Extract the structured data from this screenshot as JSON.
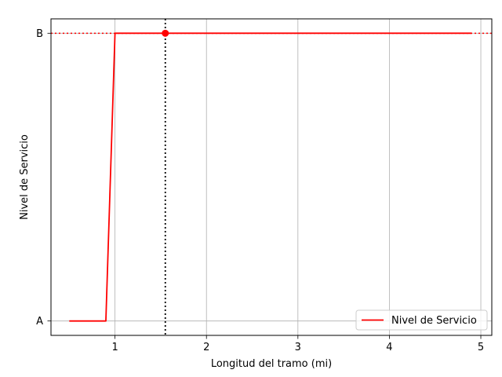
{
  "chart_data": {
    "type": "line",
    "xlabel": "Longitud del tramo (mi)",
    "ylabel": "Nivel de Servicio",
    "xlim": [
      0.3,
      5.12
    ],
    "ylim": [
      -0.05,
      1.05
    ],
    "x_ticks": [
      1,
      2,
      3,
      4,
      5
    ],
    "x_tick_labels": [
      "1",
      "2",
      "3",
      "4",
      "5"
    ],
    "y_ticks": [
      0,
      1
    ],
    "y_tick_labels": [
      "A",
      "B"
    ],
    "grid": true,
    "legend_position": "lower-right",
    "series": [
      {
        "name": "Nivel de Servicio",
        "color": "#ff0000",
        "x": [
          0.5,
          0.9,
          1.0,
          4.9
        ],
        "y": [
          0,
          0,
          1,
          1
        ]
      }
    ],
    "reference_lines": {
      "vertical_x": 1.55,
      "vertical_color": "#000000",
      "horizontal_y": 1,
      "horizontal_color": "#ff0000"
    },
    "highlight_point": {
      "x": 1.55,
      "y": 1,
      "color": "#ff0000"
    }
  }
}
